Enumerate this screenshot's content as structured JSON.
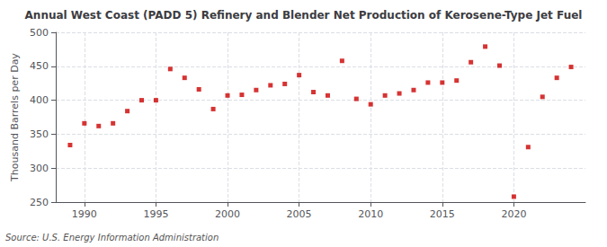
{
  "chart_data": {
    "type": "scatter",
    "title": "Annual West Coast (PADD 5) Refinery and Blender Net Production of Kerosene-Type Jet Fuel",
    "ylabel": "Thousand Barrels per Day",
    "annotations": [
      "Source: U.S. Energy Information Administration"
    ],
    "x": [
      1989,
      1990,
      1991,
      1992,
      1993,
      1994,
      1995,
      1996,
      1997,
      1998,
      1999,
      2000,
      2001,
      2002,
      2003,
      2004,
      2005,
      2006,
      2007,
      2008,
      2009,
      2010,
      2011,
      2012,
      2013,
      2014,
      2015,
      2016,
      2017,
      2018,
      2019,
      2020,
      2021,
      2022,
      2023,
      2024
    ],
    "values": [
      334,
      366,
      362,
      366,
      384,
      400,
      400,
      446,
      433,
      416,
      387,
      407,
      408,
      415,
      422,
      424,
      437,
      412,
      407,
      458,
      402,
      394,
      407,
      410,
      415,
      426,
      426,
      429,
      456,
      479,
      451,
      258,
      331,
      405,
      433,
      449
    ],
    "color": "#cc0000",
    "marker": "square",
    "xlim": [
      1988,
      2025
    ],
    "xticks": [
      1990,
      1995,
      2000,
      2005,
      2010,
      2015,
      2020
    ],
    "ylim": [
      250,
      500
    ],
    "yticks": [
      250,
      300,
      350,
      400,
      450,
      500
    ],
    "grid": true
  }
}
